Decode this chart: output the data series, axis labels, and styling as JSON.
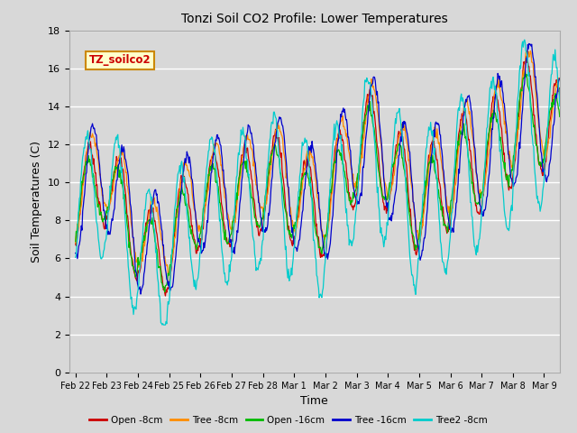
{
  "title": "Tonzi Soil CO2 Profile: Lower Temperatures",
  "xlabel": "Time",
  "ylabel": "Soil Temperatures (C)",
  "ylim": [
    0,
    18
  ],
  "yticks": [
    0,
    2,
    4,
    6,
    8,
    10,
    12,
    14,
    16,
    18
  ],
  "legend_label": "TZ_soilco2",
  "series_labels": [
    "Open -8cm",
    "Tree -8cm",
    "Open -16cm",
    "Tree -16cm",
    "Tree2 -8cm"
  ],
  "series_colors": [
    "#cc0000",
    "#ff8c00",
    "#00bb00",
    "#0000cc",
    "#00cccc"
  ],
  "bg_color": "#d8d8d8",
  "plot_bg_color": "#d8d8d8",
  "xtick_labels": [
    "Feb 22",
    "Feb 23",
    "Feb 24",
    "Feb 25",
    "Feb 26",
    "Feb 27",
    "Feb 28",
    "Mar 1",
    "Mar 2",
    "Mar 3",
    "Mar 4",
    "Mar 5",
    "Mar 6",
    "Mar 7",
    "Mar 8",
    "Mar 9"
  ],
  "n_days": 15.5,
  "samples_per_day": 48
}
